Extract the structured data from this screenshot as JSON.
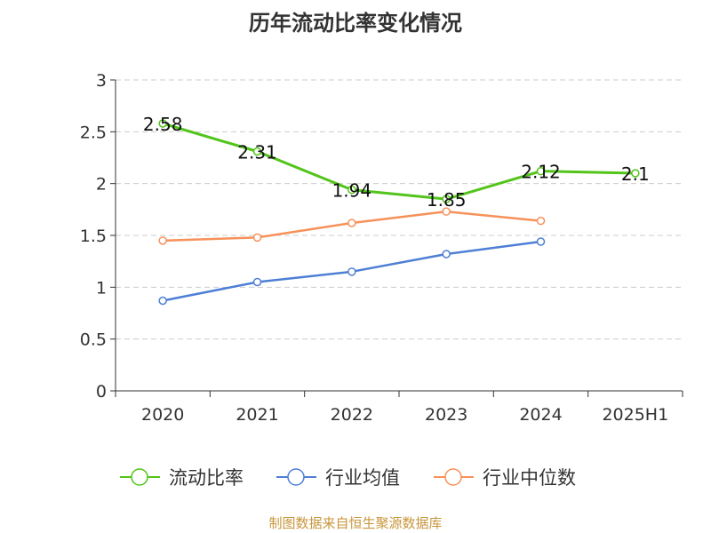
{
  "chart_data": {
    "type": "line",
    "title": "历年流动比率变化情况",
    "categories": [
      "2020",
      "2021",
      "2022",
      "2023",
      "2024",
      "2025H1"
    ],
    "ylim": [
      0,
      3
    ],
    "yticks": [
      "0",
      "0.5",
      "1",
      "1.5",
      "2",
      "2.5",
      "3"
    ],
    "ytick_values": [
      0,
      0.5,
      1,
      1.5,
      2,
      2.5,
      3
    ],
    "grid": true,
    "legend_position": "bottom",
    "series": [
      {
        "name": "流动比率",
        "color": "#52c41a",
        "values": [
          2.58,
          2.31,
          1.94,
          1.85,
          2.12,
          2.1
        ],
        "labels": [
          "2.58",
          "2.31",
          "1.94",
          "1.85",
          "2.12",
          "2.1"
        ]
      },
      {
        "name": "行业均值",
        "color": "#4e7fd6",
        "values": [
          0.87,
          1.05,
          1.15,
          1.32,
          1.44,
          null
        ]
      },
      {
        "name": "行业中位数",
        "color": "#f7915a",
        "values": [
          1.45,
          1.48,
          1.62,
          1.73,
          1.64,
          null
        ]
      }
    ]
  },
  "footer": "制图数据来自恒生聚源数据库"
}
